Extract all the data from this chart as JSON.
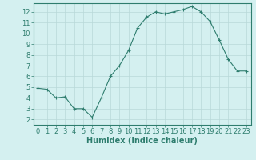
{
  "x": [
    0,
    1,
    2,
    3,
    4,
    5,
    6,
    7,
    8,
    9,
    10,
    11,
    12,
    13,
    14,
    15,
    16,
    17,
    18,
    19,
    20,
    21,
    22,
    23
  ],
  "y": [
    4.9,
    4.8,
    4.0,
    4.1,
    3.0,
    3.0,
    2.2,
    4.0,
    6.0,
    7.0,
    8.4,
    10.5,
    11.5,
    12.0,
    11.8,
    12.0,
    12.2,
    12.5,
    12.0,
    11.1,
    9.4,
    7.6,
    6.5,
    6.5
  ],
  "line_color": "#2e7d6e",
  "marker": "+",
  "marker_size": 3,
  "marker_lw": 0.8,
  "bg_color": "#d4f0f0",
  "grid_color": "#b8d8d8",
  "xlabel": "Humidex (Indice chaleur)",
  "xlim": [
    -0.5,
    23.5
  ],
  "ylim": [
    1.5,
    12.8
  ],
  "xticks": [
    0,
    1,
    2,
    3,
    4,
    5,
    6,
    7,
    8,
    9,
    10,
    11,
    12,
    13,
    14,
    15,
    16,
    17,
    18,
    19,
    20,
    21,
    22,
    23
  ],
  "yticks": [
    2,
    3,
    4,
    5,
    6,
    7,
    8,
    9,
    10,
    11,
    12
  ],
  "tick_fontsize": 6,
  "label_fontsize": 7
}
